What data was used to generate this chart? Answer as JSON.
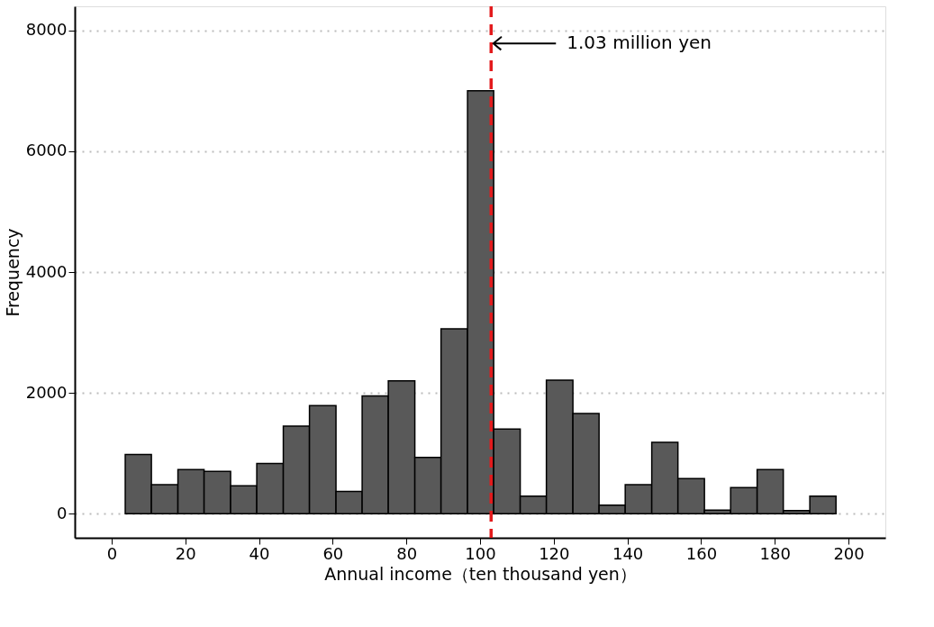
{
  "chart_data": {
    "type": "histogram",
    "xlabel": "Annual income（ten thousand yen）",
    "ylabel": "Frequency",
    "bins": [
      3.7,
      10.8,
      18.0,
      25.1,
      32.3,
      39.4,
      46.6,
      53.7,
      60.9,
      68.0,
      75.1,
      82.3,
      89.4,
      96.6,
      103.7,
      110.9,
      118.0,
      125.2,
      132.3,
      139.4,
      146.6,
      153.7,
      160.9,
      168.0,
      175.2,
      182.3,
      189.5,
      196.6
    ],
    "values": [
      980,
      480,
      730,
      700,
      460,
      830,
      1450,
      1790,
      370,
      1950,
      2200,
      930,
      3060,
      7000,
      1400,
      290,
      2210,
      1660,
      140,
      480,
      1180,
      580,
      60,
      430,
      730,
      50,
      290
    ],
    "color": "#595959",
    "xlim": [
      -10,
      210
    ],
    "xticks": [
      0,
      20,
      40,
      60,
      80,
      100,
      120,
      140,
      160,
      180,
      200
    ],
    "ylim": [
      -400,
      8400
    ],
    "yticks": [
      0,
      2000,
      4000,
      6000,
      8000
    ],
    "grid": "y",
    "ref_lines": [
      {
        "axis": "x",
        "value": 103,
        "color": "#e31a1c",
        "line_style": "dashed"
      }
    ],
    "annotations": [
      "1.03 million yen"
    ]
  }
}
